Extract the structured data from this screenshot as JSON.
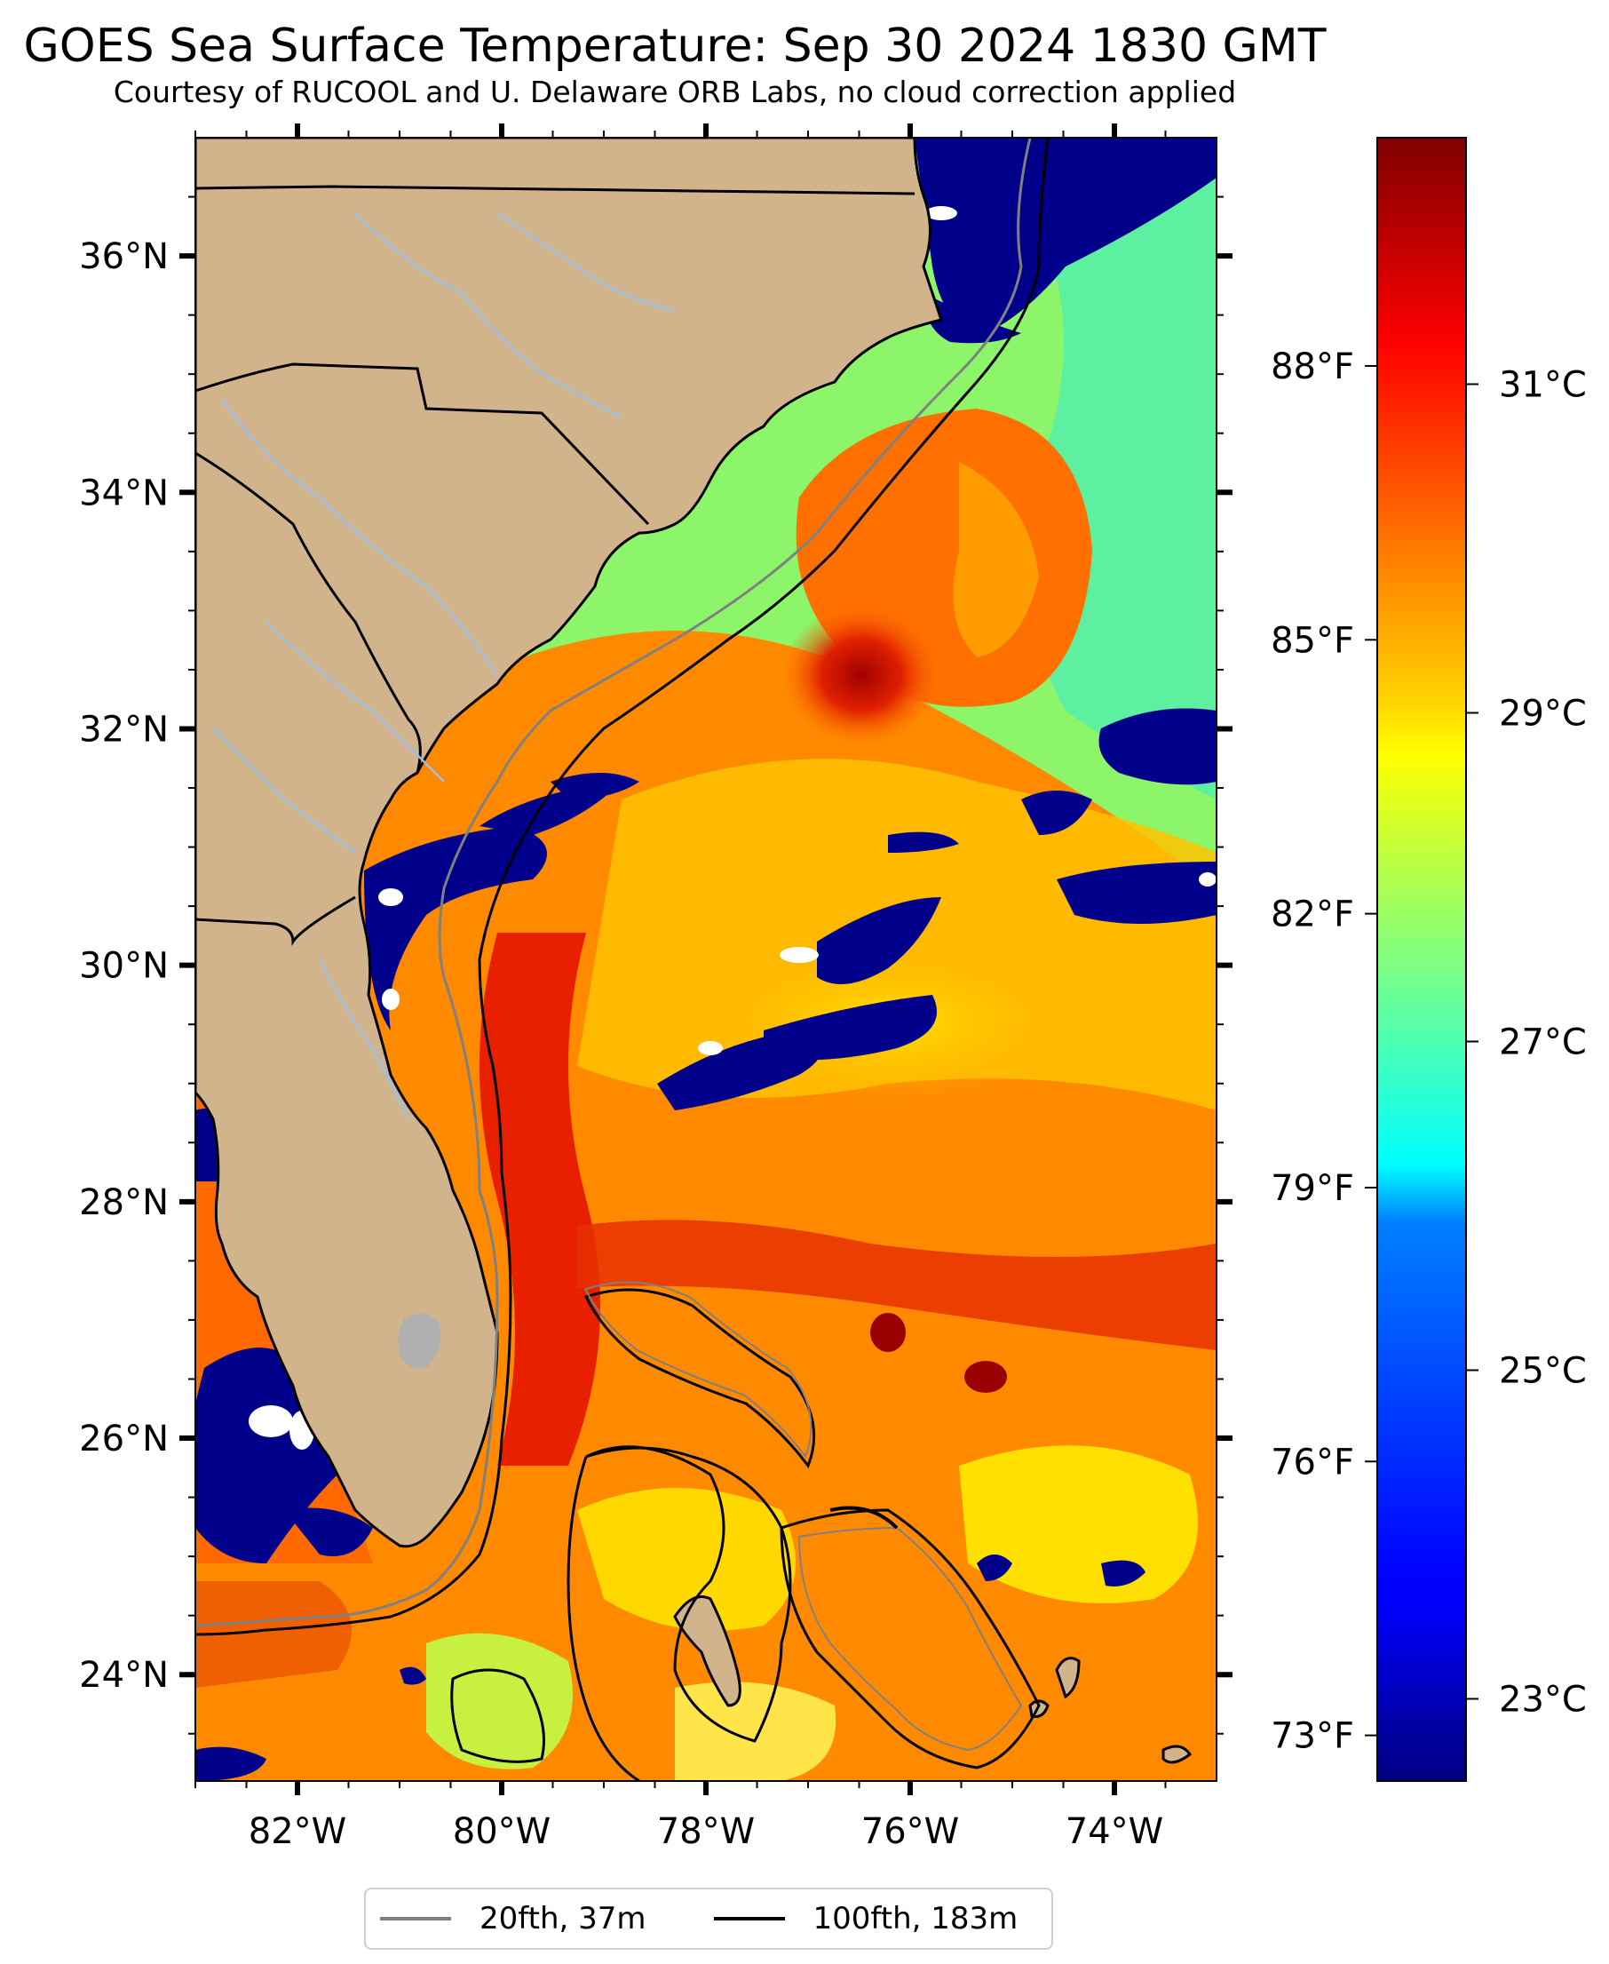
{
  "title": "GOES Sea Surface Temperature: Sep 30 2024 1830 GMT",
  "subtitle": "Courtesy of RUCOOL and U. Delaware ORB Labs, no cloud correction applied",
  "colors": {
    "land": "#d2b48c",
    "cloud_mask": "#00008b",
    "coastline": "#000000",
    "rivers": "#9cbfe6",
    "isobath_20": "#808080",
    "isobath_100": "#000000",
    "lake": "#b0b0b0"
  },
  "map": {
    "lon_ticks": [
      "82°W",
      "80°W",
      "78°W",
      "76°W",
      "74°W"
    ],
    "lat_ticks": [
      "36°N",
      "34°N",
      "32°N",
      "30°N",
      "28°N",
      "26°N",
      "24°N"
    ],
    "extent": {
      "lon_min": -83,
      "lon_max": -73,
      "lat_min": 23.1,
      "lat_max": 37
    }
  },
  "colorbar": {
    "colormap": "jet",
    "celsius_ticks": [
      "31°C",
      "29°C",
      "27°C",
      "25°C",
      "23°C"
    ],
    "fahrenheit_ticks": [
      "88°F",
      "85°F",
      "82°F",
      "79°F",
      "76°F",
      "73°F"
    ]
  },
  "legend": {
    "items": [
      {
        "label": "20fth, 37m",
        "color": "#808080"
      },
      {
        "label": "100fth, 183m",
        "color": "#000000"
      }
    ]
  }
}
